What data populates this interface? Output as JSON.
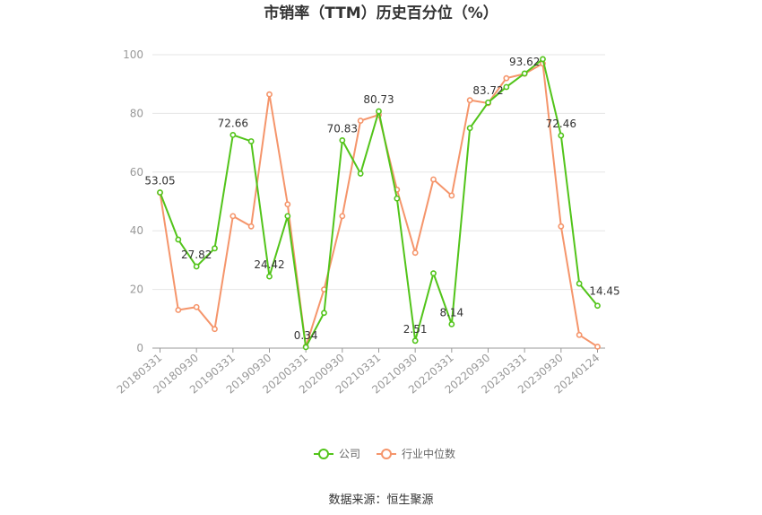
{
  "chart_data": {
    "type": "line",
    "title": "市销率（TTM）历史百分位（%）",
    "source": "数据来源：恒生聚源",
    "ylim": [
      0,
      100
    ],
    "yticks": [
      0,
      20,
      40,
      60,
      80,
      100
    ],
    "grid": true,
    "legend_position": "bottom",
    "x_tick_labels": [
      "20180331",
      "20180930",
      "20190331",
      "20190930",
      "20200331",
      "20200930",
      "20210331",
      "20210930",
      "20220331",
      "20220930",
      "20230331",
      "20230930",
      "20240124"
    ],
    "colors": {
      "company": "#52c41a",
      "industry": "#f5956b"
    },
    "series": [
      {
        "name": "公司",
        "values": [
          53.05,
          37,
          27.82,
          34,
          72.66,
          70.5,
          24.42,
          45,
          0.34,
          12,
          70.83,
          59.5,
          80.73,
          51,
          2.51,
          25.5,
          8.14,
          75,
          83.72,
          89,
          93.62,
          98.5,
          72.46,
          22,
          14.45
        ]
      },
      {
        "name": "行业中位数",
        "values": [
          53,
          13,
          14,
          6.5,
          45,
          41.5,
          86.5,
          49,
          0.5,
          20,
          45,
          77.5,
          79.5,
          54,
          32.5,
          57.5,
          52,
          84.5,
          83.5,
          92,
          93.5,
          97,
          41.5,
          4.5,
          0.5
        ]
      }
    ],
    "data_labels": [
      {
        "index": 0,
        "text": "53.05"
      },
      {
        "index": 2,
        "text": "27.82"
      },
      {
        "index": 4,
        "text": "72.66"
      },
      {
        "index": 6,
        "text": "24.42"
      },
      {
        "index": 8,
        "text": "0.34"
      },
      {
        "index": 10,
        "text": "70.83"
      },
      {
        "index": 12,
        "text": "80.73"
      },
      {
        "index": 14,
        "text": "2.51"
      },
      {
        "index": 16,
        "text": "8.14"
      },
      {
        "index": 18,
        "text": "83.72"
      },
      {
        "index": 20,
        "text": "93.62"
      },
      {
        "index": 22,
        "text": "72.46"
      },
      {
        "index": 24,
        "text": "14.45"
      }
    ]
  }
}
